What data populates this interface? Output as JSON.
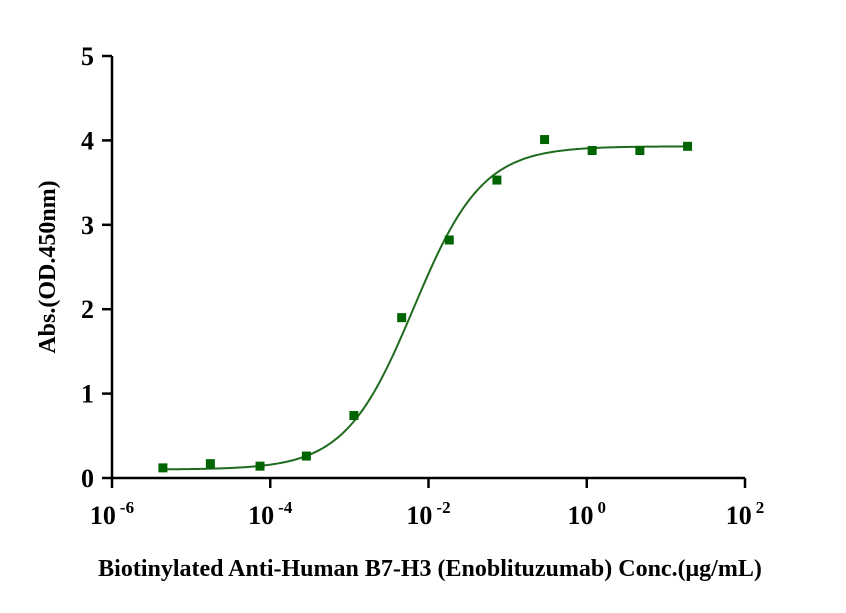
{
  "chart_data": {
    "type": "scatter",
    "title": "",
    "xlabel": "Biotinylated Anti-Human B7-H3 (Enoblituzumab) Conc.(μg/mL)",
    "ylabel": "Abs.(OD.450nm)",
    "x_scale": "log",
    "xlim": [
      1e-06,
      100
    ],
    "ylim": [
      0,
      5
    ],
    "x_ticks": [
      {
        "value": 1e-06,
        "base": "10",
        "exp": "-6"
      },
      {
        "value": 0.0001,
        "base": "10",
        "exp": "-4"
      },
      {
        "value": 0.01,
        "base": "10",
        "exp": "-2"
      },
      {
        "value": 1,
        "base": "10",
        "exp": "0"
      },
      {
        "value": 100,
        "base": "10",
        "exp": "2"
      }
    ],
    "y_ticks": [
      "0",
      "1",
      "2",
      "3",
      "4",
      "5"
    ],
    "grid": false,
    "legend": "none",
    "marker_color": "#006400",
    "curve_color": "#1e6b1e",
    "series": [
      {
        "x": [
          4.4e-06,
          1.75e-05,
          7.43e-05,
          0.000286,
          0.00114,
          0.00458,
          0.0183,
          0.0732,
          0.293,
          1.17,
          4.69,
          18.8
        ],
        "y": [
          0.12,
          0.17,
          0.14,
          0.26,
          0.74,
          1.9,
          2.82,
          3.53,
          4.01,
          3.88,
          3.88,
          3.93
        ]
      }
    ],
    "fitted_curve": {
      "model": "4PL",
      "bottom": 0.1,
      "top": 3.93,
      "ec50": 0.0065,
      "hill": 1.0
    }
  }
}
